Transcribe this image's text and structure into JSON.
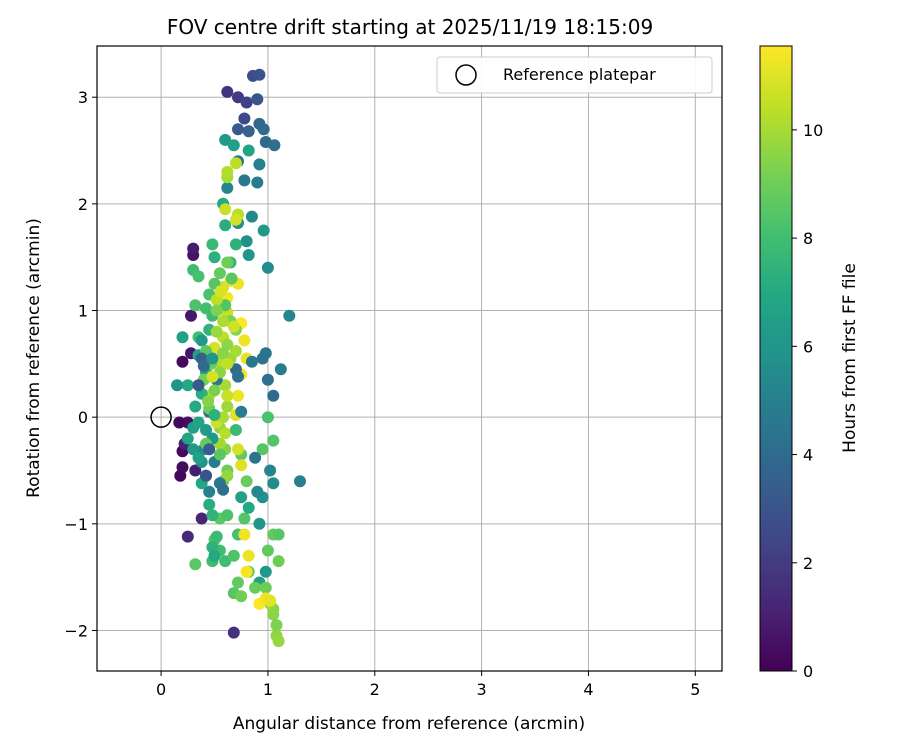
{
  "chart_data": {
    "type": "scatter",
    "title": "FOV centre drift starting at 2025/11/19 18:15:09",
    "xlabel": "Angular distance from reference (arcmin)",
    "ylabel": "Rotation from reference (arcmin)",
    "xlim": [
      -0.6,
      5.25
    ],
    "ylim": [
      -2.38,
      3.48
    ],
    "xticks": [
      0,
      1,
      2,
      3,
      4,
      5
    ],
    "xtick_labels": [
      "0",
      "1",
      "2",
      "3",
      "4",
      "5"
    ],
    "yticks": [
      -2,
      -1,
      0,
      1,
      2,
      3
    ],
    "ytick_labels": [
      "−2",
      "−1",
      "0",
      "1",
      "2",
      "3"
    ],
    "grid": true,
    "legend": {
      "placement": "top-right",
      "entries": [
        "Reference platepar"
      ]
    },
    "reference_point": {
      "name": "Reference platepar",
      "x": 0,
      "y": 0
    },
    "colorbar": {
      "label": "Hours from first FF file",
      "colormap": "viridis",
      "range": [
        0,
        11.55
      ],
      "ticks": [
        0,
        2,
        4,
        6,
        8,
        10
      ],
      "tick_labels": [
        "0",
        "2",
        "4",
        "6",
        "8",
        "10"
      ]
    },
    "series": [
      {
        "values": [
          [
            0.18,
            -0.55,
            0.2
          ],
          [
            0.2,
            -0.32,
            0.3
          ],
          [
            0.2,
            -0.47,
            0.4
          ],
          [
            0.25,
            -0.05,
            0.5
          ],
          [
            0.2,
            0.52,
            0.3
          ],
          [
            0.17,
            -0.05,
            0.2
          ],
          [
            0.3,
            1.52,
            0.6
          ],
          [
            0.3,
            1.58,
            0.9
          ],
          [
            0.28,
            0.95,
            0.8
          ],
          [
            0.22,
            -0.25,
            1.1
          ],
          [
            0.38,
            -0.95,
            1.2
          ],
          [
            0.25,
            -1.12,
            1.4
          ],
          [
            0.32,
            -0.5,
            1.0
          ],
          [
            0.28,
            0.6,
            0.7
          ],
          [
            0.68,
            -2.02,
            1.6
          ],
          [
            0.62,
            3.05,
            1.7
          ],
          [
            0.72,
            3.0,
            1.9
          ],
          [
            0.8,
            2.95,
            2.2
          ],
          [
            0.78,
            2.8,
            2.5
          ],
          [
            0.86,
            3.2,
            2.7
          ],
          [
            0.92,
            3.21,
            2.9
          ],
          [
            0.9,
            2.98,
            3.1
          ],
          [
            0.72,
            2.7,
            3.3
          ],
          [
            0.82,
            2.68,
            3.6
          ],
          [
            0.92,
            2.75,
            3.8
          ],
          [
            0.98,
            2.58,
            3.9
          ],
          [
            0.96,
            2.7,
            4.0
          ],
          [
            1.06,
            2.55,
            4.2
          ],
          [
            0.72,
            2.4,
            4.4
          ],
          [
            0.78,
            2.22,
            4.6
          ],
          [
            0.9,
            2.2,
            4.8
          ],
          [
            0.92,
            2.37,
            5.0
          ],
          [
            0.62,
            2.15,
            5.2
          ],
          [
            0.85,
            1.88,
            5.4
          ],
          [
            0.72,
            1.82,
            5.6
          ],
          [
            0.8,
            1.65,
            5.8
          ],
          [
            0.82,
            1.52,
            6.0
          ],
          [
            0.96,
            1.75,
            6.2
          ],
          [
            1.0,
            1.4,
            5.5
          ],
          [
            0.98,
            0.6,
            4.5
          ],
          [
            1.0,
            0.35,
            4.2
          ],
          [
            1.05,
            0.2,
            4.0
          ],
          [
            1.2,
            0.95,
            5.3
          ],
          [
            1.12,
            0.45,
            4.8
          ],
          [
            1.3,
            -0.6,
            5.0
          ],
          [
            1.02,
            -0.5,
            5.2
          ],
          [
            1.05,
            -0.62,
            5.6
          ],
          [
            0.95,
            -0.75,
            5.8
          ],
          [
            0.92,
            -1.0,
            6.0
          ],
          [
            0.98,
            -1.45,
            6.2
          ],
          [
            0.92,
            -1.55,
            6.4
          ],
          [
            0.6,
            2.6,
            6.3
          ],
          [
            0.68,
            2.55,
            6.5
          ],
          [
            0.82,
            2.5,
            6.8
          ],
          [
            0.58,
            2.0,
            7.0
          ],
          [
            0.6,
            1.8,
            7.2
          ],
          [
            0.7,
            1.62,
            7.4
          ],
          [
            0.65,
            1.45,
            7.6
          ],
          [
            0.48,
            1.62,
            7.8
          ],
          [
            0.5,
            1.5,
            7.3
          ],
          [
            0.3,
            1.38,
            7.9
          ],
          [
            0.35,
            1.32,
            8.1
          ],
          [
            0.32,
            1.05,
            8.3
          ],
          [
            0.35,
            0.75,
            8.0
          ],
          [
            0.25,
            0.3,
            7.0
          ],
          [
            0.2,
            0.75,
            6.6
          ],
          [
            0.15,
            0.3,
            6.0
          ],
          [
            0.3,
            -0.1,
            6.5
          ],
          [
            0.25,
            -0.2,
            6.8
          ],
          [
            0.3,
            -0.3,
            6.2
          ],
          [
            0.32,
            -1.38,
            8.6
          ],
          [
            0.5,
            -1.15,
            8.4
          ],
          [
            0.55,
            -0.95,
            8.6
          ],
          [
            0.48,
            -1.35,
            7.9
          ],
          [
            0.6,
            -1.35,
            8.0
          ],
          [
            0.68,
            -1.65,
            8.5
          ],
          [
            0.72,
            -1.55,
            8.8
          ],
          [
            0.75,
            -1.68,
            9.0
          ],
          [
            0.68,
            -1.3,
            8.3
          ],
          [
            0.72,
            -1.1,
            8.1
          ],
          [
            0.78,
            -0.95,
            8.4
          ],
          [
            0.82,
            -1.45,
            8.7
          ],
          [
            0.88,
            -1.6,
            8.9
          ],
          [
            0.98,
            -1.6,
            9.0
          ],
          [
            1.0,
            -1.72,
            9.2
          ],
          [
            1.05,
            -1.8,
            9.4
          ],
          [
            1.05,
            -1.85,
            9.5
          ],
          [
            1.08,
            -2.05,
            9.6
          ],
          [
            1.1,
            -2.1,
            9.7
          ],
          [
            1.08,
            -1.95,
            9.3
          ],
          [
            1.02,
            -1.75,
            9.8
          ],
          [
            1.1,
            -1.35,
            9.0
          ],
          [
            1.05,
            -1.1,
            8.8
          ],
          [
            1.1,
            -1.1,
            8.5
          ],
          [
            1.0,
            -1.25,
            8.7
          ],
          [
            1.05,
            -0.22,
            8.4
          ],
          [
            1.0,
            0.0,
            8.2
          ],
          [
            0.95,
            -0.3,
            8.5
          ],
          [
            0.75,
            -0.35,
            8.7
          ],
          [
            0.8,
            -0.6,
            8.9
          ],
          [
            0.62,
            -0.92,
            8.3
          ],
          [
            0.58,
            -0.6,
            9.2
          ],
          [
            0.6,
            -0.3,
            9.4
          ],
          [
            0.62,
            -0.5,
            9.0
          ],
          [
            0.55,
            -0.1,
            9.6
          ],
          [
            0.62,
            0.1,
            9.8
          ],
          [
            0.6,
            0.3,
            10.0
          ],
          [
            0.55,
            0.52,
            10.2
          ],
          [
            0.58,
            0.75,
            10.4
          ],
          [
            0.62,
            0.98,
            10.6
          ],
          [
            0.58,
            1.22,
            10.8
          ],
          [
            0.65,
            1.28,
            11.0
          ],
          [
            0.72,
            1.25,
            11.2
          ],
          [
            0.62,
            1.12,
            11.4
          ],
          [
            0.75,
            0.88,
            11.5
          ],
          [
            0.78,
            0.72,
            11.3
          ],
          [
            0.8,
            0.55,
            11.1
          ],
          [
            0.75,
            0.4,
            11.4
          ],
          [
            0.72,
            0.2,
            11.2
          ],
          [
            0.7,
            0.02,
            11.0
          ],
          [
            0.72,
            -0.3,
            10.8
          ],
          [
            0.75,
            -0.45,
            11.0
          ],
          [
            0.78,
            -1.1,
            11.3
          ],
          [
            0.82,
            -1.3,
            11.2
          ],
          [
            0.8,
            -1.45,
            11.4
          ],
          [
            0.92,
            -1.75,
            11.5
          ],
          [
            0.98,
            -1.7,
            11.3
          ],
          [
            1.02,
            -1.72,
            11.1
          ],
          [
            0.62,
            2.25,
            10.0
          ],
          [
            0.62,
            2.3,
            10.2
          ],
          [
            0.7,
            2.38,
            10.4
          ],
          [
            0.6,
            1.95,
            10.6
          ],
          [
            0.72,
            1.9,
            10.3
          ],
          [
            0.7,
            1.85,
            10.8
          ],
          [
            0.5,
            0.65,
            10.9
          ],
          [
            0.45,
            0.2,
            10.5
          ],
          [
            0.52,
            -0.05,
            10.7
          ],
          [
            0.55,
            -0.25,
            9.9
          ],
          [
            0.62,
            -0.55,
            9.7
          ],
          [
            0.38,
            -0.42,
            6.0
          ],
          [
            0.42,
            -0.55,
            5.5
          ],
          [
            0.45,
            -0.7,
            5.0
          ],
          [
            0.4,
            -0.3,
            5.5
          ],
          [
            0.5,
            -0.42,
            4.8
          ],
          [
            0.55,
            -0.62,
            4.5
          ],
          [
            0.58,
            -0.68,
            4.2
          ],
          [
            0.45,
            0.05,
            3.8
          ],
          [
            0.52,
            0.35,
            4.5
          ],
          [
            0.7,
            0.45,
            4.0
          ],
          [
            0.72,
            0.38,
            4.3
          ],
          [
            0.75,
            0.05,
            4.8
          ],
          [
            0.85,
            0.52,
            4.6
          ],
          [
            0.95,
            0.55,
            4.4
          ],
          [
            0.88,
            -0.38,
            4.5
          ],
          [
            0.9,
            -0.7,
            5.4
          ],
          [
            0.42,
            0.42,
            6.7
          ],
          [
            0.38,
            0.22,
            7.2
          ],
          [
            0.32,
            0.1,
            7.0
          ],
          [
            0.35,
            -0.05,
            6.8
          ],
          [
            0.42,
            -0.12,
            6.4
          ],
          [
            0.48,
            -0.2,
            6.2
          ],
          [
            0.35,
            -0.38,
            6.6
          ],
          [
            0.38,
            -0.62,
            6.9
          ],
          [
            0.45,
            -0.82,
            7.2
          ],
          [
            0.48,
            -0.92,
            7.5
          ],
          [
            0.52,
            -1.12,
            7.8
          ],
          [
            0.55,
            -1.25,
            8.0
          ],
          [
            0.48,
            -1.22,
            7.4
          ],
          [
            0.5,
            -1.3,
            7.0
          ],
          [
            0.35,
            0.58,
            6.5
          ],
          [
            0.38,
            0.72,
            6.2
          ],
          [
            0.45,
            0.82,
            7.5
          ],
          [
            0.48,
            0.95,
            7.8
          ],
          [
            0.42,
            1.02,
            8.0
          ],
          [
            0.45,
            1.15,
            8.2
          ],
          [
            0.5,
            1.25,
            8.5
          ],
          [
            0.55,
            1.35,
            8.8
          ],
          [
            0.62,
            1.45,
            9.0
          ],
          [
            0.66,
            1.3,
            8.6
          ],
          [
            0.6,
            1.05,
            8.4
          ],
          [
            0.65,
            0.9,
            9.2
          ],
          [
            0.7,
            0.82,
            9.4
          ],
          [
            0.62,
            0.68,
            9.6
          ],
          [
            0.65,
            0.55,
            9.8
          ],
          [
            0.7,
            0.62,
            10.0
          ],
          [
            0.55,
            0.42,
            9.5
          ],
          [
            0.5,
            0.25,
            9.2
          ],
          [
            0.45,
            0.08,
            9.0
          ],
          [
            0.42,
            -0.25,
            8.8
          ],
          [
            0.55,
            -0.35,
            8.6
          ],
          [
            0.58,
            0.6,
            9.5
          ],
          [
            0.52,
            0.8,
            9.8
          ],
          [
            0.58,
            0.9,
            10.1
          ],
          [
            0.52,
            1.1,
            10.4
          ],
          [
            0.52,
            1.0,
            9.3
          ],
          [
            0.47,
            0.5,
            8.9
          ],
          [
            0.42,
            0.62,
            8.6
          ],
          [
            0.4,
            0.35,
            9.1
          ],
          [
            0.44,
            0.15,
            9.4
          ],
          [
            0.62,
            0.2,
            10.6
          ],
          [
            0.6,
            -0.15,
            10.3
          ],
          [
            0.58,
            0.0,
            10.1
          ],
          [
            0.62,
            0.5,
            10.5
          ],
          [
            0.68,
            0.85,
            10.7
          ],
          [
            0.56,
            1.18,
            10.9
          ],
          [
            0.48,
            0.38,
            10.8
          ],
          [
            0.42,
            -0.55,
            3.0
          ],
          [
            0.45,
            -0.3,
            3.4
          ],
          [
            0.35,
            0.3,
            3.2
          ],
          [
            0.38,
            0.55,
            3.6
          ],
          [
            0.4,
            0.48,
            4.0
          ],
          [
            0.48,
            0.55,
            6.0
          ],
          [
            0.5,
            0.02,
            7.4
          ],
          [
            0.7,
            -0.12,
            7.8
          ],
          [
            0.75,
            -0.75,
            6.6
          ],
          [
            0.82,
            -0.85,
            7.0
          ]
        ]
      }
    ]
  }
}
